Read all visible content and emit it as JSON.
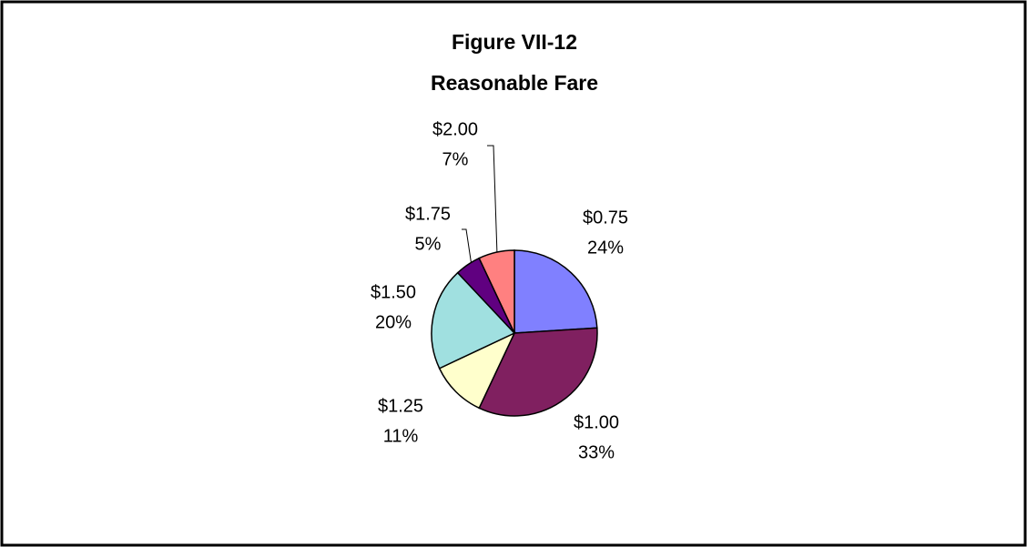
{
  "chart_data": {
    "type": "pie",
    "title": "Figure VII-12",
    "subtitle": "Reasonable Fare",
    "categories": [
      "$0.75",
      "$1.00",
      "$1.25",
      "$1.50",
      "$1.75",
      "$2.00"
    ],
    "values": [
      24,
      33,
      11,
      20,
      5,
      7
    ],
    "value_labels": [
      "24%",
      "33%",
      "11%",
      "20%",
      "5%",
      "7%"
    ],
    "colors": [
      "#8080ff",
      "#802060",
      "#ffffcc",
      "#a0e0e0",
      "#600080",
      "#ff8080"
    ]
  }
}
